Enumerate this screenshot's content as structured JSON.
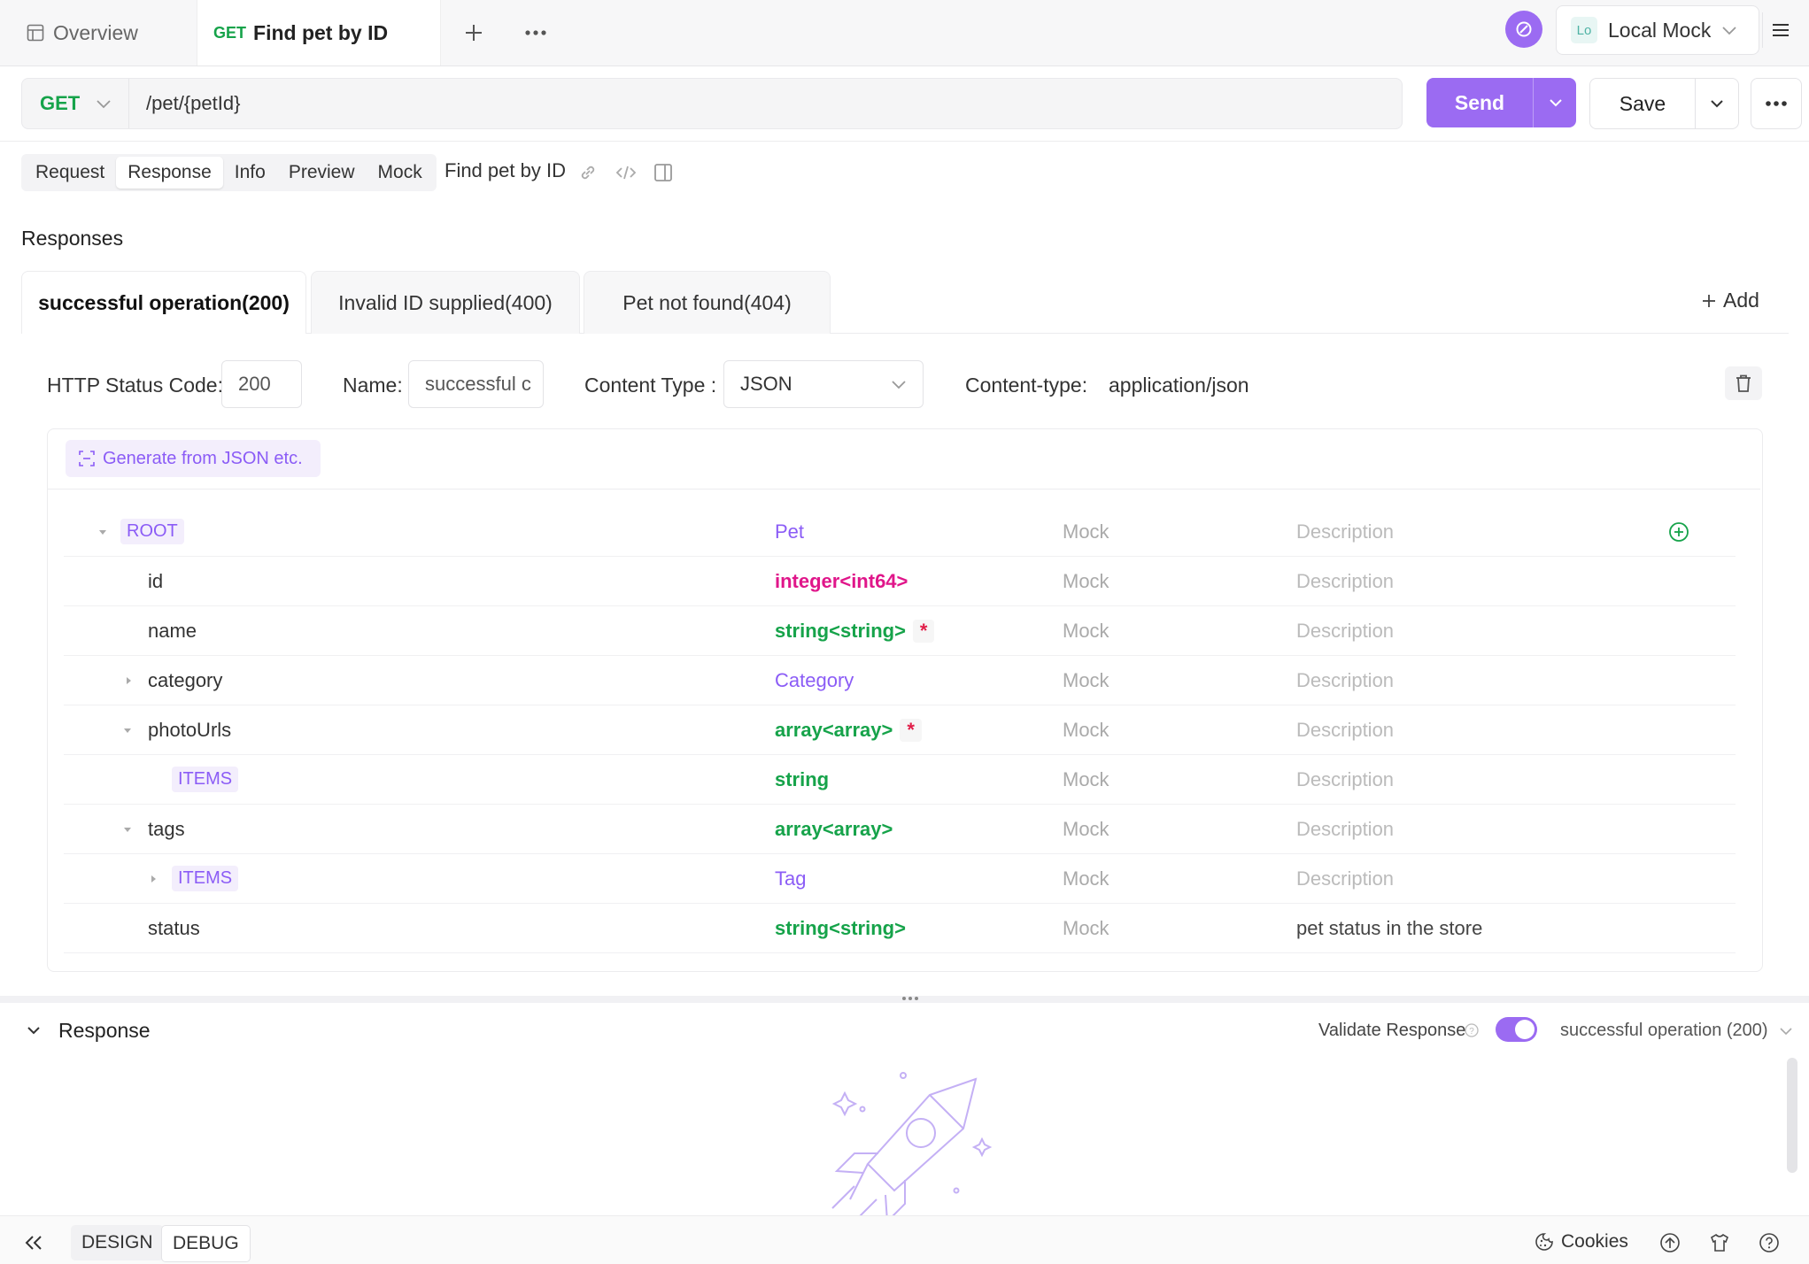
{
  "tabs": {
    "overview": "Overview",
    "active_method": "GET",
    "active_title": "Find pet by ID"
  },
  "environment": {
    "badge": "Lo",
    "name": "Local Mock"
  },
  "request": {
    "method": "GET",
    "url": "/pet/{petId}"
  },
  "actions": {
    "send": "Send",
    "save": "Save"
  },
  "subtabs": [
    "Request",
    "Response",
    "Info",
    "Preview",
    "Mock"
  ],
  "endpoint_name": "Find pet by ID",
  "responses_heading": "Responses",
  "response_tabs": [
    "successful operation(200)",
    "Invalid ID supplied(400)",
    "Pet not found(404)"
  ],
  "add_label": "Add",
  "fields": {
    "status_code_label": "HTTP Status Code:",
    "status_code_value": "200",
    "name_label": "Name:",
    "name_value": "successful c",
    "content_type_label": "Content Type :",
    "content_type_value": "JSON",
    "content_type_header_label": "Content-type:",
    "content_type_header_value": "application/json"
  },
  "generate_label": "Generate from JSON etc.",
  "schema_rows": [
    {
      "name": "ROOT",
      "type": "Pet",
      "mock": "Mock",
      "desc": "Description"
    },
    {
      "name": "id",
      "type": "integer<int64>",
      "mock": "Mock",
      "desc": "Description"
    },
    {
      "name": "name",
      "type": "string<string>",
      "mock": "Mock",
      "desc": "Description",
      "required": "*"
    },
    {
      "name": "category",
      "type": "Category",
      "mock": "Mock",
      "desc": "Description"
    },
    {
      "name": "photoUrls",
      "type": "array<array>",
      "mock": "Mock",
      "desc": "Description",
      "required": "*"
    },
    {
      "name": "ITEMS",
      "type": "string",
      "mock": "Mock",
      "desc": "Description"
    },
    {
      "name": "tags",
      "type": "array<array>",
      "mock": "Mock",
      "desc": "Description"
    },
    {
      "name": "ITEMS",
      "type": "Tag",
      "mock": "Mock",
      "desc": "Description"
    },
    {
      "name": "status",
      "type": "string<string>",
      "mock": "Mock",
      "desc": "pet status in the store"
    }
  ],
  "response_panel": {
    "title": "Response",
    "validate_label": "Validate Response",
    "validate_on": true,
    "selected_response": "successful operation (200)"
  },
  "bottom": {
    "design": "DESIGN",
    "debug": "DEBUG",
    "cookies": "Cookies"
  },
  "colors": {
    "accent": "#9b6bf2",
    "green": "#16a34a",
    "pink": "#e0168a",
    "required": "#e11d48"
  }
}
